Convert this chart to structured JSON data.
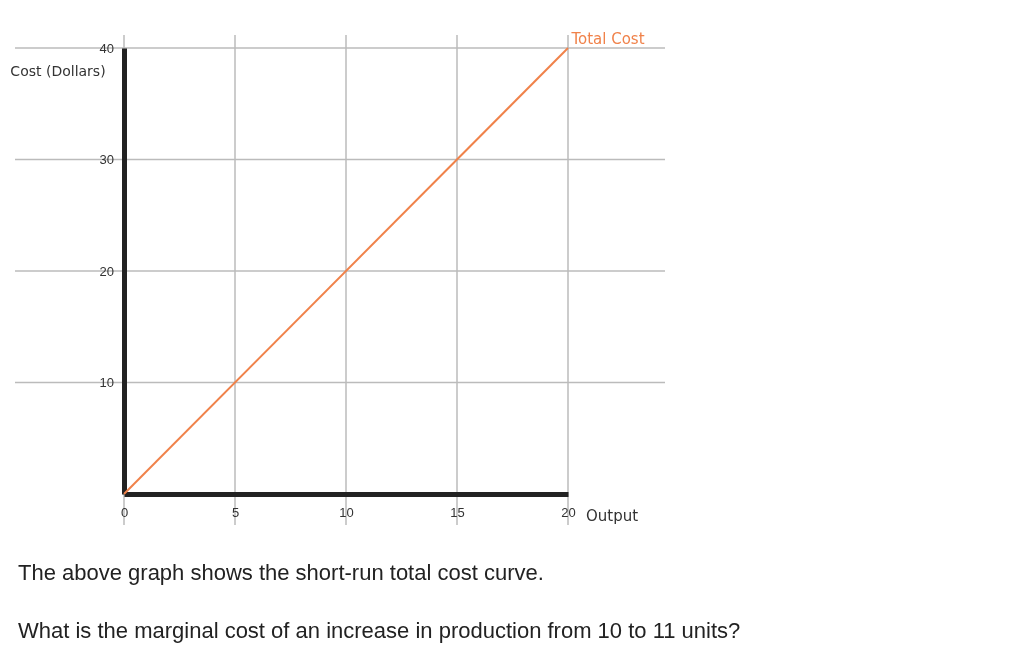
{
  "chart_data": {
    "type": "line",
    "xlabel": "Output",
    "ylabel": "Cost (Dollars)",
    "x": [
      0,
      20
    ],
    "series": [
      {
        "name": "Total Cost",
        "color": "#f0824a",
        "values": [
          0,
          40
        ]
      }
    ],
    "xlim": [
      0,
      20
    ],
    "ylim": [
      0,
      40
    ],
    "xticks": [
      0,
      5,
      10,
      15,
      20
    ],
    "yticks": [
      10,
      20,
      30,
      40
    ],
    "grid": true,
    "marker": "none",
    "line_style": "solid",
    "annotations": [
      "The above graph shows the short-run total cost curve.",
      "What is the marginal cost of an increase in production from 10 to 11 units?"
    ]
  }
}
